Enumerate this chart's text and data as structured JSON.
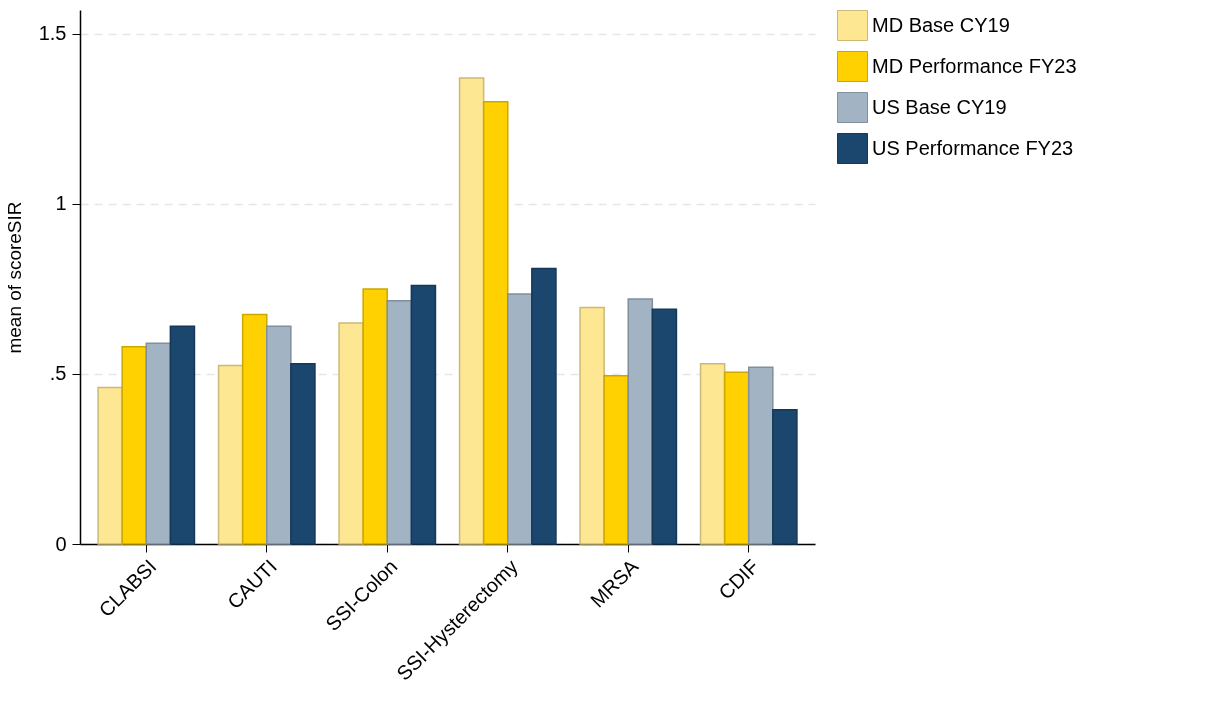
{
  "chart_data": {
    "type": "bar",
    "ylabel": "mean of scoreSIR",
    "categories": [
      "CLABSI",
      "CAUTI",
      "SSI-Colon",
      "SSI-Hysterectomy",
      "MRSA",
      "CDIF"
    ],
    "series": [
      {
        "name": "MD Base CY19",
        "color": "#fee792",
        "values": [
          0.46,
          0.525,
          0.65,
          1.37,
          0.695,
          0.53
        ]
      },
      {
        "name": "MD Performance FY23",
        "color": "#ffd100",
        "values": [
          0.58,
          0.675,
          0.75,
          1.3,
          0.495,
          0.505
        ]
      },
      {
        "name": "US Base CY19",
        "color": "#a2b3c3",
        "values": [
          0.59,
          0.64,
          0.715,
          0.735,
          0.72,
          0.52
        ]
      },
      {
        "name": "US Performance FY23",
        "color": "#1b466e",
        "values": [
          0.64,
          0.53,
          0.76,
          0.81,
          0.69,
          0.395
        ]
      }
    ],
    "ylim": [
      0,
      1.57
    ],
    "yticks": [
      0,
      {
        "value": 0.5,
        "label": ".5"
      },
      1,
      1.5
    ],
    "grid": "y",
    "legend": "right"
  }
}
